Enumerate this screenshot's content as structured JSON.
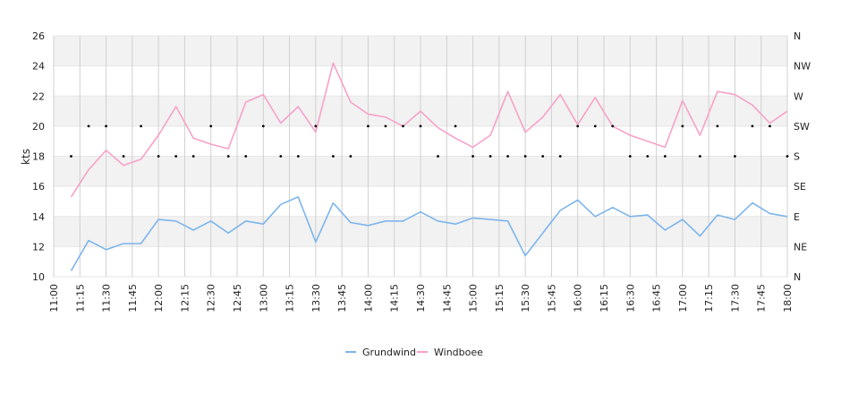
{
  "chart_data": {
    "type": "line",
    "ylabel": "kts",
    "ylim": [
      10,
      26
    ],
    "yticks": [
      10,
      12,
      14,
      16,
      18,
      20,
      22,
      24,
      26
    ],
    "y2_ticks": [
      "N",
      "NE",
      "E",
      "SE",
      "S",
      "SW",
      "W",
      "NW",
      "N"
    ],
    "x_start": "11:00",
    "x_end": "18:00",
    "xticks": [
      "11:00",
      "11:15",
      "11:30",
      "11:45",
      "12:00",
      "12:15",
      "12:30",
      "12:45",
      "13:00",
      "13:15",
      "13:30",
      "13:45",
      "14:00",
      "14:15",
      "14:30",
      "14:45",
      "15:00",
      "15:15",
      "15:30",
      "15:45",
      "16:00",
      "16:15",
      "16:30",
      "16:45",
      "17:00",
      "17:15",
      "17:30",
      "17:45",
      "18:00"
    ],
    "x": [
      "11:10",
      "11:20",
      "11:30",
      "11:40",
      "11:50",
      "12:00",
      "12:10",
      "12:20",
      "12:30",
      "12:40",
      "12:50",
      "13:00",
      "13:10",
      "13:20",
      "13:30",
      "13:40",
      "13:50",
      "14:00",
      "14:10",
      "14:20",
      "14:30",
      "14:40",
      "14:50",
      "15:00",
      "15:10",
      "15:20",
      "15:30",
      "15:40",
      "15:50",
      "16:00",
      "16:10",
      "16:20",
      "16:30",
      "16:40",
      "16:50",
      "17:00",
      "17:10",
      "17:20",
      "17:30",
      "17:40",
      "17:50",
      "18:00"
    ],
    "series": [
      {
        "name": "Grundwind",
        "color": "#7cb5ec",
        "values": [
          10.4,
          12.4,
          11.8,
          12.2,
          12.2,
          13.8,
          13.7,
          13.1,
          13.7,
          12.9,
          13.7,
          13.5,
          14.8,
          15.3,
          12.3,
          14.9,
          13.6,
          13.4,
          13.7,
          13.7,
          14.3,
          13.7,
          13.5,
          13.9,
          13.8,
          13.7,
          11.4,
          12.9,
          14.4,
          15.1,
          14.0,
          14.6,
          14.0,
          14.1,
          13.1,
          13.8,
          12.7,
          14.1,
          13.8,
          14.9,
          14.2,
          14.0
        ]
      },
      {
        "name": "Windboee",
        "color": "#f7a1c9",
        "values": [
          15.3,
          17.1,
          18.4,
          17.4,
          17.8,
          19.4,
          21.3,
          19.2,
          18.8,
          18.5,
          21.6,
          22.1,
          20.2,
          21.3,
          19.6,
          24.2,
          21.6,
          20.8,
          20.6,
          20.0,
          21.0,
          19.9,
          19.2,
          18.6,
          19.4,
          22.3,
          19.6,
          20.6,
          22.1,
          20.1,
          21.9,
          20.0,
          19.4,
          19.0,
          18.6,
          21.7,
          19.4,
          22.3,
          22.1,
          21.4,
          20.2,
          21.0
        ]
      }
    ],
    "direction": {
      "color": "#000000",
      "values": [
        "S",
        "SW",
        "SW",
        "S",
        "SW",
        "S",
        "S",
        "S",
        "SW",
        "S",
        "S",
        "SW",
        "S",
        "S",
        "SW",
        "S",
        "S",
        "SW",
        "SW",
        "SW",
        "SW",
        "S",
        "SW",
        "S",
        "S",
        "S",
        "S",
        "S",
        "S",
        "SW",
        "SW",
        "SW",
        "S",
        "S",
        "S",
        "SW",
        "S",
        "SW",
        "S",
        "SW",
        "SW",
        "S"
      ]
    },
    "legend": {
      "position": "bottom-center"
    },
    "grid": true
  }
}
